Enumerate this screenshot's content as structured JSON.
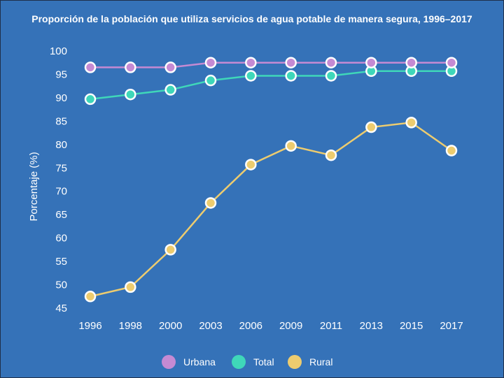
{
  "chart_data": {
    "type": "line",
    "title": "Proporción de la población que utiliza servicios de agua potable de manera segura, 1996–2017",
    "xlabel": "",
    "ylabel": "Porcentaje (%)",
    "categories": [
      "1996",
      "1998",
      "2000",
      "2003",
      "2006",
      "2009",
      "2011",
      "2013",
      "2015",
      "2017"
    ],
    "ylim": [
      45,
      100
    ],
    "yticks": [
      45,
      50,
      55,
      60,
      65,
      70,
      75,
      80,
      85,
      90,
      95,
      100
    ],
    "grid": false,
    "legend_position": "bottom-center",
    "series": [
      {
        "name": "Urbana",
        "color": "#c58ad3",
        "values": [
          96.5,
          96.5,
          96.5,
          97.5,
          97.5,
          97.5,
          97.5,
          97.5,
          97.5,
          97.5
        ]
      },
      {
        "name": "Total",
        "color": "#3fd7b9",
        "values": [
          89.7,
          90.7,
          91.7,
          93.7,
          94.7,
          94.7,
          94.7,
          95.7,
          95.7,
          95.7
        ]
      },
      {
        "name": "Rural",
        "color": "#edcc6f",
        "values": [
          47.5,
          49.5,
          57.5,
          67.5,
          75.7,
          79.7,
          77.7,
          83.7,
          84.7,
          78.7
        ]
      }
    ]
  }
}
